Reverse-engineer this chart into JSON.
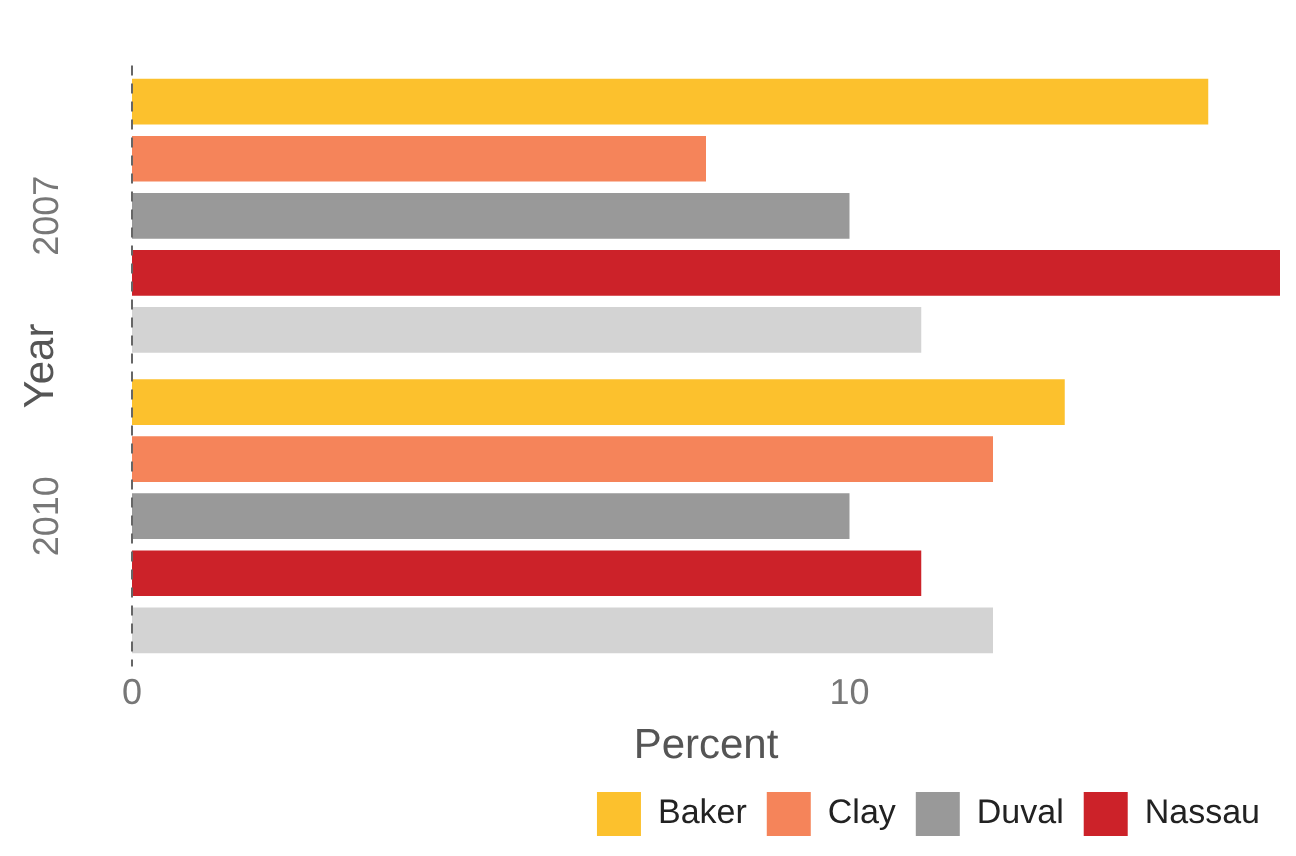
{
  "chart_data": {
    "type": "bar",
    "orientation": "horizontal",
    "xlabel": "Percent",
    "ylabel": "Year",
    "categories": [
      "2007",
      "2010"
    ],
    "series": [
      {
        "name": "Baker",
        "color": "#fcc12d",
        "values": [
          15,
          13
        ]
      },
      {
        "name": "Clay",
        "color": "#f5845a",
        "values": [
          8,
          12
        ]
      },
      {
        "name": "Duval",
        "color": "#999999",
        "values": [
          10,
          10
        ]
      },
      {
        "name": "Nassau",
        "color": "#cc2229",
        "values": [
          16,
          11
        ]
      },
      {
        "color": "#d3d3d3",
        "values": [
          11,
          12
        ]
      }
    ],
    "xlim": [
      0,
      16
    ],
    "xticks": [
      0,
      10
    ],
    "grid": false,
    "legend": "bottom",
    "ref_lines": [
      {
        "axis": "x",
        "value": 0,
        "line_style": "dashed",
        "color": "#666666"
      }
    ]
  }
}
